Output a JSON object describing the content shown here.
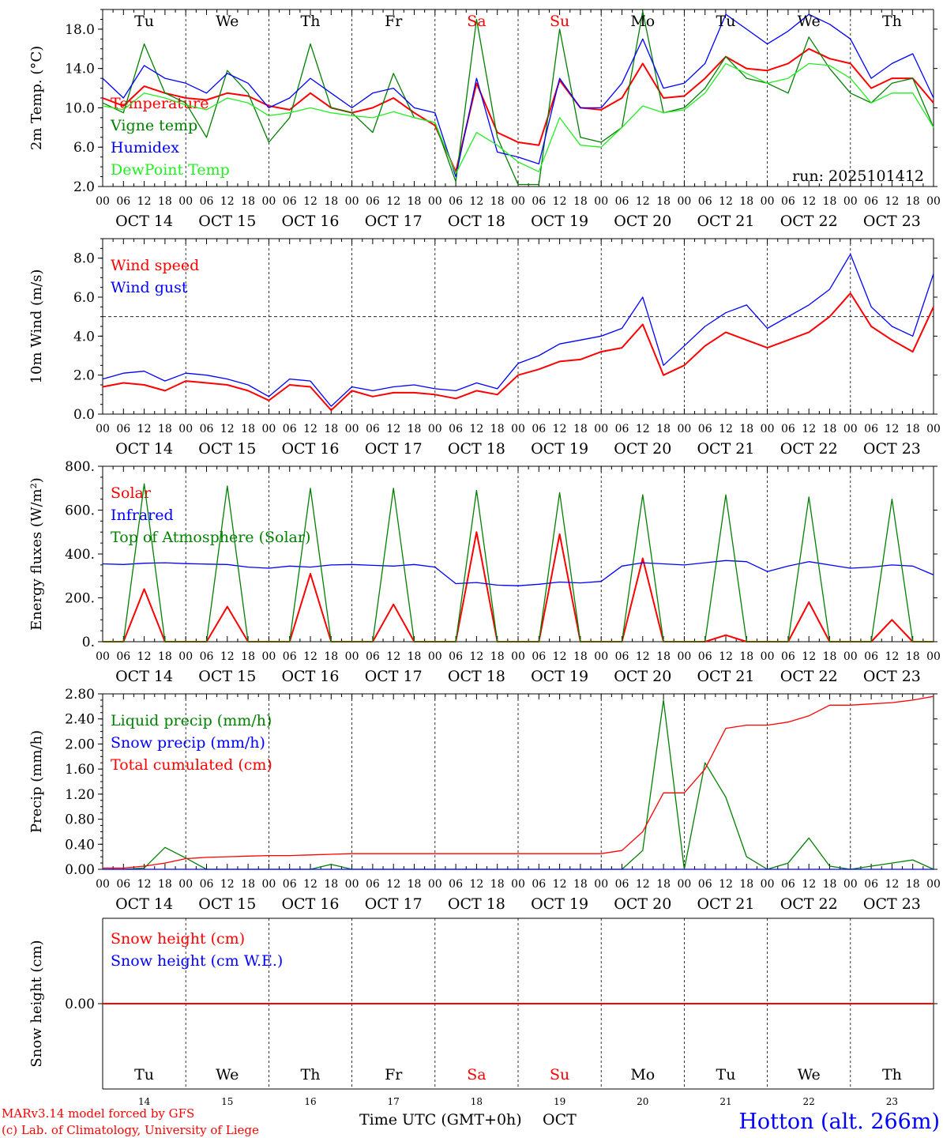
{
  "run_label": "run: 2025101412",
  "day_names": [
    "Tu",
    "We",
    "Th",
    "Fr",
    "Sa",
    "Su",
    "Mo",
    "Tu",
    "We",
    "Th"
  ],
  "weekend_indices": [
    4,
    5
  ],
  "date_labels": [
    "OCT 14",
    "OCT 15",
    "OCT 16",
    "OCT 17",
    "OCT 18",
    "OCT 19",
    "OCT 20",
    "OCT 21",
    "OCT 22",
    "OCT 23"
  ],
  "day_numbers": [
    "14",
    "15",
    "16",
    "17",
    "18",
    "19",
    "20",
    "21",
    "22",
    "23"
  ],
  "hour_labels": [
    "00",
    "06",
    "12",
    "18"
  ],
  "footer": {
    "model": "MARv3.14 model forced by GFS",
    "credit": "(c) Lab. of Climatology, University of Liege",
    "time_axis": "Time UTC (GMT+0h)",
    "month": "OCT",
    "station": "Hotton (alt. 266m)"
  },
  "colors": {
    "red": "#ff0000",
    "darkgreen": "#008000",
    "blue": "#0000ff",
    "lightgreen": "#22ee22",
    "weekend": "#ff0000"
  },
  "chart_data": [
    {
      "type": "line",
      "title": "Temperature",
      "ylabel": "2m Temp. (°C)",
      "ylim": [
        2.0,
        20.0
      ],
      "yticks": [
        "2.0",
        "6.0",
        "10.0",
        "14.0",
        "18.0"
      ],
      "ytick_values": [
        2,
        6,
        10,
        14,
        18
      ],
      "x_hours": [
        0,
        6,
        12,
        18,
        24,
        30,
        36,
        42,
        48,
        54,
        60,
        66,
        72,
        78,
        84,
        90,
        96,
        102,
        108,
        114,
        120,
        126,
        132,
        138,
        144,
        150,
        156,
        162,
        168,
        174,
        180,
        186,
        192,
        198,
        204,
        210,
        216,
        222,
        228,
        234,
        240
      ],
      "series": [
        {
          "name": "Temperature",
          "color": "red",
          "values": [
            11,
            10.2,
            12.2,
            11.5,
            11,
            10.8,
            11.5,
            11.2,
            10.2,
            9.8,
            11.5,
            10,
            9.5,
            10,
            11,
            9.5,
            8.2,
            3.5,
            12.5,
            7.5,
            6.5,
            6.2,
            12.8,
            10,
            9.8,
            11,
            14.5,
            11,
            11.2,
            13,
            15.2,
            14,
            13.8,
            14.5,
            16,
            15,
            14.5,
            12,
            13,
            13,
            10.5
          ]
        },
        {
          "name": "Vigne temp",
          "color": "darkgreen",
          "values": [
            10.5,
            9.5,
            16.5,
            11.5,
            10.5,
            7,
            13.8,
            11.5,
            6.5,
            9,
            16.5,
            10,
            9.5,
            7.5,
            13.5,
            9,
            8.5,
            2.5,
            19,
            7,
            2.2,
            2.2,
            18,
            7,
            6.5,
            8,
            19.8,
            9.5,
            10,
            12,
            15.2,
            13,
            12.5,
            11.5,
            17.2,
            14,
            11.5,
            10.5,
            12.5,
            13,
            8
          ]
        },
        {
          "name": "Humidex",
          "color": "blue",
          "values": [
            13,
            11,
            14.3,
            13,
            12.5,
            11.5,
            13.5,
            12.5,
            10,
            11,
            13,
            11.5,
            10,
            11.5,
            12,
            10,
            9.5,
            3,
            13,
            5.5,
            5,
            4.3,
            13,
            10,
            10,
            12.5,
            17,
            12,
            12.5,
            14.5,
            19.5,
            18,
            16.5,
            17.8,
            19.5,
            18.5,
            17,
            13,
            14.5,
            15.5,
            11
          ]
        },
        {
          "name": "DewPoint Temp",
          "color": "lightgreen",
          "values": [
            10.2,
            9.8,
            11.5,
            11,
            10.3,
            9.8,
            11,
            10.5,
            9.2,
            9.5,
            10,
            9.5,
            9.2,
            9,
            9.6,
            9,
            8.5,
            3.3,
            7.5,
            6.2,
            4.5,
            3.5,
            9,
            6.2,
            6,
            8,
            10.2,
            9.5,
            9.8,
            11.5,
            14.5,
            13.5,
            12.5,
            13,
            14.5,
            14.3,
            13,
            10.5,
            11.5,
            11.5,
            8
          ]
        }
      ]
    },
    {
      "type": "line",
      "title": "Wind",
      "ylabel": "10m Wind (m/s)",
      "ylim": [
        0.0,
        9.0
      ],
      "yticks": [
        "0.0",
        "2.0",
        "4.0",
        "6.0",
        "8.0"
      ],
      "ytick_values": [
        0,
        2,
        4,
        6,
        8
      ],
      "hline": 5.0,
      "x_hours": [
        0,
        6,
        12,
        18,
        24,
        30,
        36,
        42,
        48,
        54,
        60,
        66,
        72,
        78,
        84,
        90,
        96,
        102,
        108,
        114,
        120,
        126,
        132,
        138,
        144,
        150,
        156,
        162,
        168,
        174,
        180,
        186,
        192,
        198,
        204,
        210,
        216,
        222,
        228,
        234,
        240
      ],
      "series": [
        {
          "name": "Wind speed",
          "color": "red",
          "values": [
            1.4,
            1.6,
            1.5,
            1.2,
            1.7,
            1.6,
            1.5,
            1.2,
            0.7,
            1.5,
            1.4,
            0.2,
            1.2,
            0.9,
            1.1,
            1.1,
            1,
            0.8,
            1.2,
            1,
            2,
            2.3,
            2.7,
            2.8,
            3.2,
            3.4,
            4.6,
            2,
            2.5,
            3.5,
            4.2,
            3.8,
            3.4,
            3.8,
            4.2,
            5,
            6.2,
            4.5,
            3.8,
            3.2,
            5.5
          ]
        },
        {
          "name": "Wind gust",
          "color": "blue",
          "values": [
            1.8,
            2.1,
            2.2,
            1.7,
            2.1,
            2,
            1.8,
            1.5,
            0.9,
            1.8,
            1.7,
            0.4,
            1.4,
            1.2,
            1.4,
            1.5,
            1.3,
            1.2,
            1.6,
            1.3,
            2.6,
            3,
            3.6,
            3.8,
            4,
            4.4,
            6,
            2.5,
            3.5,
            4.5,
            5.2,
            5.6,
            4.4,
            5,
            5.6,
            6.4,
            8.2,
            5.5,
            4.5,
            4,
            7.2
          ]
        }
      ]
    },
    {
      "type": "line",
      "title": "Energy fluxes",
      "ylabel": "Energy fluxes (W/m²)",
      "ylim": [
        0,
        800
      ],
      "yticks": [
        "0.",
        "200.",
        "400.",
        "600.",
        "800."
      ],
      "ytick_values": [
        0,
        200,
        400,
        600,
        800
      ],
      "x_hours": [
        0,
        6,
        12,
        18,
        24,
        30,
        36,
        42,
        48,
        54,
        60,
        66,
        72,
        78,
        84,
        90,
        96,
        102,
        108,
        114,
        120,
        126,
        132,
        138,
        144,
        150,
        156,
        162,
        168,
        174,
        180,
        186,
        192,
        198,
        204,
        210,
        216,
        222,
        228,
        234,
        240
      ],
      "series": [
        {
          "name": "Solar",
          "color": "red",
          "values": [
            0,
            0,
            240,
            0,
            0,
            0,
            160,
            0,
            0,
            0,
            310,
            0,
            0,
            0,
            170,
            0,
            0,
            0,
            500,
            0,
            0,
            0,
            490,
            0,
            0,
            0,
            380,
            0,
            0,
            0,
            30,
            0,
            0,
            0,
            180,
            0,
            0,
            0,
            100,
            0,
            0
          ]
        },
        {
          "name": "Infrared",
          "color": "blue",
          "values": [
            355,
            352,
            358,
            360,
            356,
            354,
            352,
            340,
            335,
            345,
            340,
            350,
            352,
            348,
            345,
            352,
            340,
            265,
            270,
            258,
            255,
            262,
            272,
            268,
            275,
            345,
            360,
            355,
            350,
            360,
            370,
            365,
            320,
            345,
            365,
            350,
            335,
            340,
            350,
            345,
            305
          ]
        },
        {
          "name": "Top of Atmosphere (Solar)",
          "color": "darkgreen",
          "values": [
            0,
            0,
            720,
            0,
            0,
            0,
            710,
            0,
            0,
            0,
            700,
            0,
            0,
            0,
            700,
            0,
            0,
            0,
            690,
            0,
            0,
            0,
            680,
            0,
            0,
            0,
            670,
            0,
            0,
            0,
            670,
            0,
            0,
            0,
            660,
            0,
            0,
            0,
            650,
            0,
            0
          ]
        }
      ]
    },
    {
      "type": "line",
      "title": "Precipitation",
      "ylabel": "Precip (mm/h)",
      "ylim": [
        0.0,
        2.8
      ],
      "yticks": [
        "0.00",
        "0.40",
        "0.80",
        "1.20",
        "1.60",
        "2.00",
        "2.40",
        "2.80"
      ],
      "ytick_values": [
        0,
        0.4,
        0.8,
        1.2,
        1.6,
        2,
        2.4,
        2.8
      ],
      "x_hours": [
        0,
        6,
        12,
        18,
        24,
        30,
        36,
        42,
        48,
        54,
        60,
        66,
        72,
        78,
        84,
        90,
        96,
        102,
        108,
        114,
        120,
        126,
        132,
        138,
        144,
        150,
        156,
        162,
        168,
        174,
        180,
        186,
        192,
        198,
        204,
        210,
        216,
        222,
        228,
        234,
        240
      ],
      "series": [
        {
          "name": "Liquid precip (mm/h)",
          "color": "darkgreen",
          "values": [
            0,
            0,
            0.02,
            0.35,
            0.18,
            0,
            0,
            0,
            0,
            0,
            0,
            0.08,
            0,
            0,
            0,
            0,
            0,
            0,
            0,
            0,
            0,
            0,
            0,
            0,
            0,
            0,
            0.3,
            2.7,
            0,
            1.7,
            1.15,
            0.2,
            0,
            0.1,
            0.5,
            0.05,
            0,
            0.05,
            0.1,
            0.15,
            0
          ]
        },
        {
          "name": "Snow precip (mm/h)",
          "color": "blue",
          "values": [
            0,
            0,
            0,
            0,
            0,
            0,
            0,
            0,
            0,
            0,
            0,
            0,
            0,
            0,
            0,
            0,
            0,
            0,
            0,
            0,
            0,
            0,
            0,
            0,
            0,
            0,
            0,
            0,
            0,
            0,
            0,
            0,
            0,
            0,
            0,
            0,
            0,
            0,
            0,
            0,
            0
          ]
        },
        {
          "name": "Total cumulated (cm)",
          "color": "red",
          "values": [
            0.02,
            0.02,
            0.05,
            0.1,
            0.17,
            0.19,
            0.2,
            0.21,
            0.22,
            0.22,
            0.23,
            0.24,
            0.25,
            0.25,
            0.25,
            0.25,
            0.25,
            0.25,
            0.25,
            0.25,
            0.25,
            0.25,
            0.25,
            0.25,
            0.25,
            0.3,
            0.6,
            1.22,
            1.22,
            1.6,
            2.25,
            2.3,
            2.3,
            2.35,
            2.45,
            2.62,
            2.62,
            2.64,
            2.66,
            2.7,
            2.76
          ]
        }
      ]
    },
    {
      "type": "line",
      "title": "Snow height",
      "ylabel": "Snow height (cm)",
      "ylim": [
        -1.0,
        1.0
      ],
      "yticks": [
        "0.00"
      ],
      "ytick_values": [
        0
      ],
      "x_hours": [
        0,
        240
      ],
      "series": [
        {
          "name": "Snow height (cm)",
          "color": "red",
          "values": [
            0,
            0
          ]
        },
        {
          "name": "Snow height (cm W.E.)",
          "color": "blue",
          "values": []
        }
      ]
    }
  ]
}
